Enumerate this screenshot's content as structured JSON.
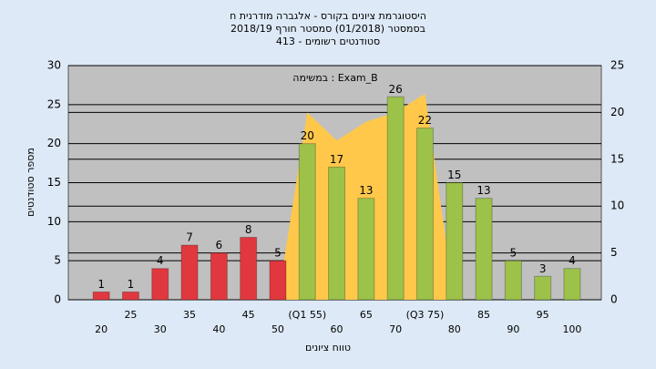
{
  "chart_data": {
    "type": "bar",
    "title": "היסטוגרמת ציונים בקורס - אלגברה מודרנית ח",
    "subtitle": "בסמסטר  (01/2018)  סמסטר חורף 2018/19",
    "subtitle2": "413 - סטודנטים רשומים",
    "annotation": "במשימה : Exam_B",
    "ylabel": "מספר סטודנטים",
    "xlabel": "טווח ציונים",
    "categories": [
      "20",
      "25",
      "30",
      "35",
      "40",
      "45",
      "50",
      "(Q1 55)",
      "60",
      "65",
      "70",
      "(Q3 75)",
      "80",
      "85",
      "90",
      "95",
      "100"
    ],
    "values": [
      1,
      1,
      4,
      7,
      6,
      8,
      5,
      20,
      17,
      13,
      26,
      22,
      15,
      13,
      5,
      3,
      4
    ],
    "colors": [
      "#e0383e",
      "#e0383e",
      "#e0383e",
      "#e0383e",
      "#e0383e",
      "#e0383e",
      "#e0383e",
      "#9cc24a",
      "#9cc24a",
      "#9cc24a",
      "#9cc24a",
      "#9cc24a",
      "#9cc24a",
      "#9cc24a",
      "#9cc24a",
      "#9cc24a",
      "#9cc24a"
    ],
    "y2_values": [
      null,
      null,
      null,
      null,
      null,
      null,
      0,
      20,
      17,
      19,
      20,
      22,
      0,
      null,
      null,
      null,
      null
    ],
    "y2_color": "#ffc84a",
    "ylim": [
      0,
      30
    ],
    "yticks": [
      0,
      5,
      10,
      15,
      20,
      25,
      30
    ],
    "y2lim": [
      0,
      25
    ],
    "y2ticks": [
      0,
      5,
      10,
      15,
      20,
      25
    ],
    "grid": true
  }
}
